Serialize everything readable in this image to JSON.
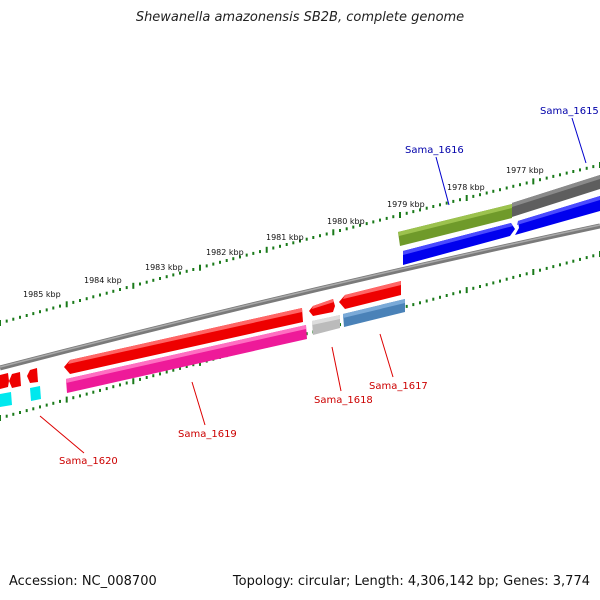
{
  "title": "Shewanella amazonensis SB2B, complete genome",
  "footer": {
    "accession": "Accession: NC_008700",
    "topology": "Topology: circular; Length: 4,306,142 bp; Genes: 3,774"
  },
  "scale_labels": [
    "1977 kbp",
    "1978 kbp",
    "1979 kbp",
    "1980 kbp",
    "1981 kbp",
    "1982 kbp",
    "1983 kbp",
    "1984 kbp",
    "1985 kbp"
  ],
  "genes": [
    {
      "id": "sama-1615",
      "label": "Sama_1615",
      "label_color": "#0000aa",
      "line_color": "#0000cc"
    },
    {
      "id": "sama-1616",
      "label": "Sama_1616",
      "label_color": "#0000aa",
      "line_color": "#0000cc"
    },
    {
      "id": "sama-1617",
      "label": "Sama_1617",
      "label_color": "#cc0000",
      "line_color": "#dd0000"
    },
    {
      "id": "sama-1618",
      "label": "Sama_1618",
      "label_color": "#cc0000",
      "line_color": "#dd0000"
    },
    {
      "id": "sama-1619",
      "label": "Sama_1619",
      "label_color": "#cc0000",
      "line_color": "#dd0000"
    },
    {
      "id": "sama-1620",
      "label": "Sama_1620",
      "label_color": "#cc0000",
      "line_color": "#dd0000"
    }
  ],
  "colors": {
    "backbone": "#808080",
    "tick": "#1a7a1a",
    "cds_forward": "#ee0000",
    "cds_reverse": "#0000ee",
    "pink_feature": "#ee1a99",
    "olive_feature": "#6f9a2a",
    "dark_feature": "#666666",
    "steel_feature": "#4a82b8",
    "gray_feature": "#bbbbbb",
    "cyan_feature": "#00e8ee"
  }
}
